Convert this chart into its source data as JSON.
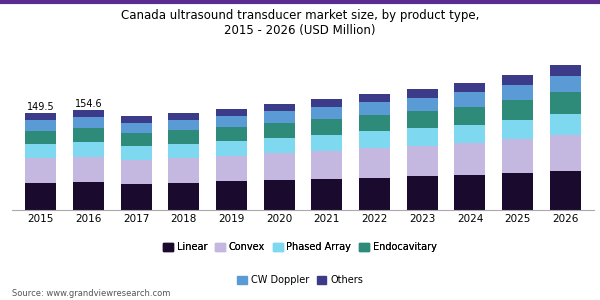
{
  "title": "Canada ultrasound transducer market size, by product type,\n2015 - 2026 (USD Million)",
  "years": [
    2015,
    2016,
    2017,
    2018,
    2019,
    2020,
    2021,
    2022,
    2023,
    2024,
    2025,
    2026
  ],
  "segments": {
    "Linear": [
      42,
      43,
      40,
      42,
      44,
      46,
      48,
      50,
      52,
      54,
      57,
      60
    ],
    "Convex": [
      38,
      39,
      37,
      38,
      39,
      41,
      43,
      45,
      47,
      49,
      52,
      55
    ],
    "Phased Array": [
      22,
      23,
      21,
      22,
      23,
      24,
      25,
      26,
      27,
      28,
      30,
      33
    ],
    "Endocavitary": [
      20,
      21,
      20,
      21,
      22,
      23,
      24,
      25,
      26,
      28,
      30,
      33
    ],
    "CW Doppler": [
      16,
      17,
      16,
      16,
      17,
      18,
      19,
      20,
      21,
      22,
      23,
      25
    ],
    "Others": [
      11.5,
      11.6,
      10,
      10,
      11,
      11,
      12,
      12,
      13,
      14,
      15,
      17
    ]
  },
  "colors": {
    "Linear": "#1a0a2e",
    "Convex": "#c5b8e0",
    "Phased Array": "#7dd8f0",
    "Endocavitary": "#2e8b7a",
    "CW Doppler": "#5b9bd5",
    "Others": "#3b3b8a"
  },
  "annotations": [
    {
      "year_idx": 0,
      "text": "149.5"
    },
    {
      "year_idx": 1,
      "text": "154.6"
    }
  ],
  "source": "Source: www.grandviewresearch.com",
  "ylim": [
    0,
    240
  ],
  "bar_width": 0.65,
  "background_color": "#ffffff",
  "header_line_color": "#5c2d91"
}
